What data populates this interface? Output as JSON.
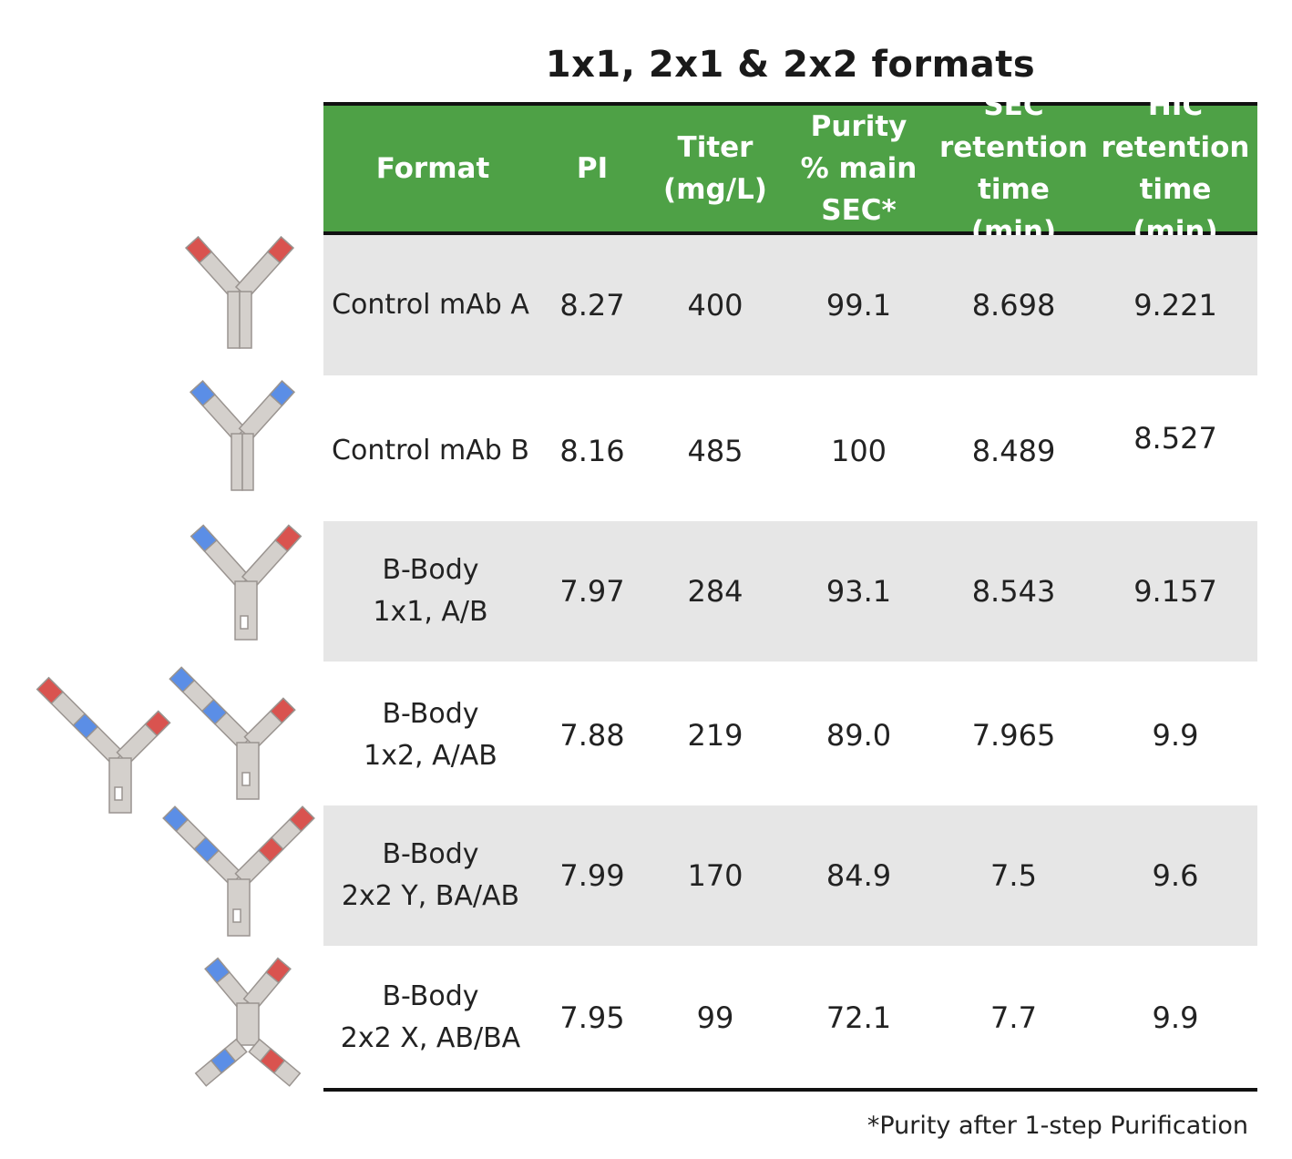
{
  "title": "1x1, 2x1 & 2x2 formats",
  "colors": {
    "header_bg": "#4ea146",
    "shade": "#e6e6e6",
    "red_domain": "#d9534f",
    "blue_domain": "#5b8ee6",
    "grey_domain": "#d4d0cc"
  },
  "table": {
    "headers": [
      "Format",
      "PI",
      "Titer\n(mg/L)",
      "Purity\n% main\nSEC*",
      "SEC\nretention\ntime (min)",
      "HIC\nretention\ntime (min)"
    ],
    "rows": [
      {
        "format": "Control mAb A",
        "pi": "8.27",
        "titer": "400",
        "purity": "99.1",
        "sec": "8.698",
        "hic": "9.221",
        "icon": "antibody-red-icon"
      },
      {
        "format": "Control mAb B",
        "pi": "8.16",
        "titer": "485",
        "purity": "100",
        "sec": "8.489",
        "hic": "8.527",
        "icon": "antibody-blue-icon"
      },
      {
        "format": "B-Body\n1x1, A/B",
        "pi": "7.97",
        "titer": "284",
        "purity": "93.1",
        "sec": "8.543",
        "hic": "9.157",
        "icon": "bbody-1x1-icon"
      },
      {
        "format": "B-Body\n1x2, A/AB",
        "pi": "7.88",
        "titer": "219",
        "purity": "89.0",
        "sec": "7.965",
        "hic": "9.9",
        "icon": "bbody-1x2-icon"
      },
      {
        "format": "B-Body\n2x2 Y, BA/AB",
        "pi": "7.99",
        "titer": "170",
        "purity": "84.9",
        "sec": "7.5",
        "hic": "9.6",
        "icon": "bbody-2x2y-icon"
      },
      {
        "format": "B-Body\n2x2 X, AB/BA",
        "pi": "7.95",
        "titer": "99",
        "purity": "72.1",
        "sec": "7.7",
        "hic": "9.9",
        "icon": "bbody-2x2x-icon"
      }
    ]
  },
  "footnote": "*Purity after 1-step Purification"
}
